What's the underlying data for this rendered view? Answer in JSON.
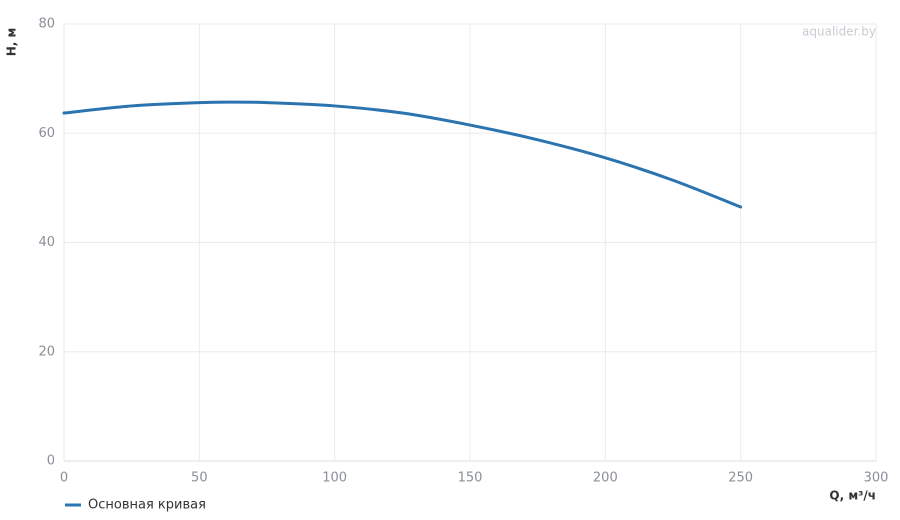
{
  "chart_data": {
    "type": "line",
    "watermark": "aqualider.by",
    "x_label": "Q, м³/ч",
    "y_label": "H, м",
    "x": [
      0,
      25,
      50,
      62.5,
      75,
      100,
      125,
      150,
      175,
      200,
      225,
      250
    ],
    "series": [
      {
        "name": "Основная кривая",
        "color": "#2b74b0",
        "values": [
          63.7,
          65.0,
          65.6,
          65.7,
          65.6,
          65.0,
          63.7,
          61.5,
          58.8,
          55.5,
          51.4,
          46.5
        ]
      }
    ],
    "xlim": [
      0,
      300
    ],
    "xticks": [
      0,
      50,
      100,
      150,
      200,
      250,
      300
    ],
    "ylim": [
      0,
      80
    ],
    "yticks": [
      0,
      20,
      40,
      60,
      80
    ],
    "grid": true,
    "legend": "bottom-left"
  }
}
